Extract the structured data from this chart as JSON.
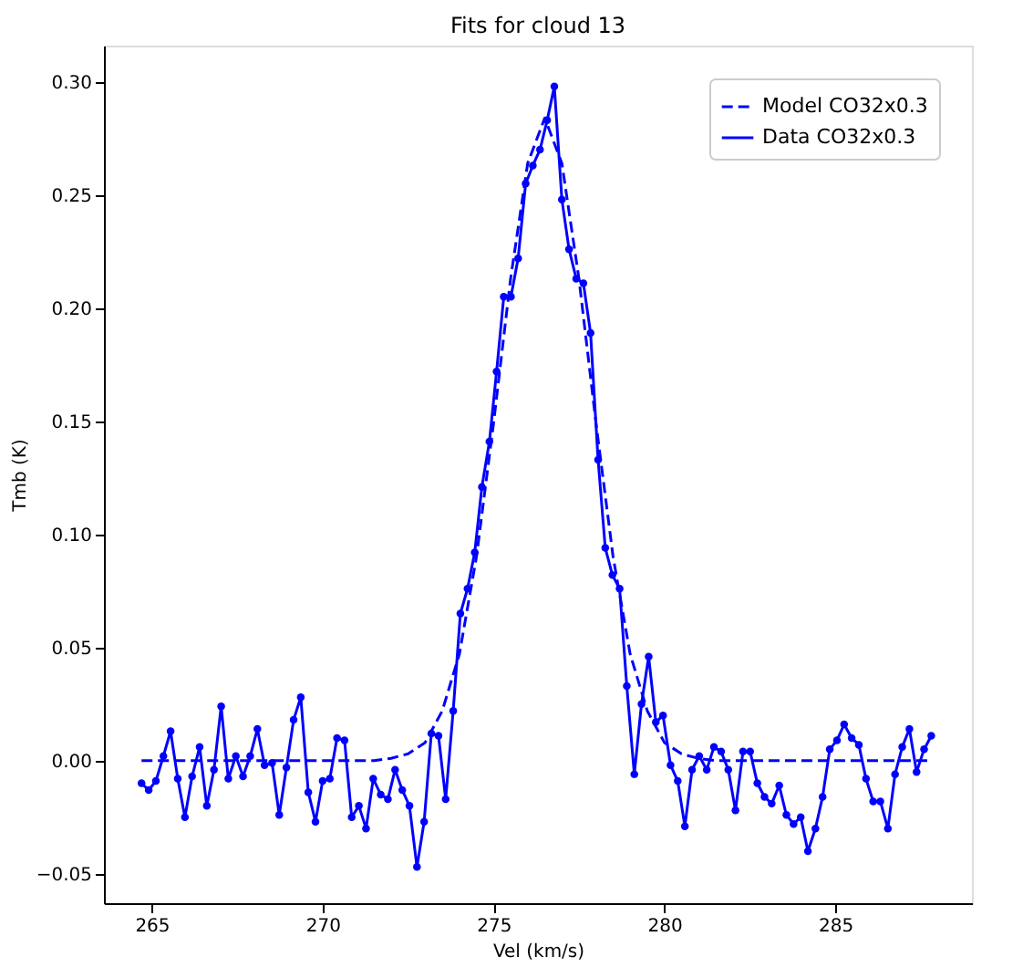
{
  "chart_data": {
    "type": "line",
    "title": "Fits for cloud 13",
    "xlabel": "Vel (km/s)",
    "ylabel": "Tmb (K)",
    "xlim": [
      263.6,
      289.0
    ],
    "xticks": [
      265,
      270,
      275,
      280,
      285
    ],
    "ylim": [
      -0.063,
      0.316
    ],
    "yticks": [
      {
        "value": -0.05,
        "label": "−0.05"
      },
      {
        "value": 0,
        "label": "0.00"
      },
      {
        "value": 0.05,
        "label": "0.05"
      },
      {
        "value": 0.1,
        "label": "0.10"
      },
      {
        "value": 0.15,
        "label": "0.15"
      },
      {
        "value": 0.2,
        "label": "0.20"
      },
      {
        "value": 0.25,
        "label": "0.25"
      },
      {
        "value": 0.3,
        "label": "0.30"
      }
    ],
    "grid": false,
    "legend": "top right",
    "series": [
      {
        "name": "Model CO32x0.3",
        "color": "#0000ff",
        "line_style": "dashed",
        "marker": "none",
        "x": [
          264.7,
          271.5,
          272.0,
          272.5,
          273.0,
          273.5,
          274.0,
          274.5,
          275.0,
          275.5,
          276.0,
          276.5,
          277.0,
          277.5,
          278.0,
          278.5,
          279.0,
          279.5,
          280.0,
          280.5,
          281.0,
          281.5,
          287.8
        ],
        "values": [
          0,
          0,
          0.001,
          0.003,
          0.008,
          0.022,
          0.047,
          0.09,
          0.149,
          0.213,
          0.264,
          0.284,
          0.264,
          0.213,
          0.149,
          0.09,
          0.047,
          0.022,
          0.008,
          0.003,
          0.001,
          0,
          0
        ]
      },
      {
        "name": "Data CO32x0.3",
        "color": "#0000ff",
        "line_style": "solid",
        "marker": "circle",
        "x": [
          264.7,
          264.91,
          265.12,
          265.34,
          265.55,
          265.76,
          265.97,
          266.18,
          266.4,
          266.61,
          266.82,
          267.03,
          267.24,
          267.46,
          267.67,
          267.88,
          268.09,
          268.3,
          268.52,
          268.73,
          268.94,
          269.15,
          269.36,
          269.58,
          269.79,
          270.0,
          270.21,
          270.42,
          270.64,
          270.85,
          271.06,
          271.27,
          271.48,
          271.7,
          271.91,
          272.12,
          272.33,
          272.54,
          272.76,
          272.97,
          273.18,
          273.39,
          273.6,
          273.82,
          274.03,
          274.24,
          274.45,
          274.66,
          274.88,
          275.09,
          275.3,
          275.51,
          275.72,
          275.94,
          276.15,
          276.36,
          276.57,
          276.78,
          277.0,
          277.21,
          277.42,
          277.63,
          277.84,
          278.06,
          278.27,
          278.48,
          278.69,
          278.9,
          279.12,
          279.33,
          279.54,
          279.75,
          279.96,
          280.18,
          280.39,
          280.6,
          280.81,
          281.02,
          281.24,
          281.45,
          281.66,
          281.87,
          282.08,
          282.3,
          282.51,
          282.72,
          282.93,
          283.14,
          283.36,
          283.57,
          283.78,
          283.99,
          284.2,
          284.42,
          284.63,
          284.84,
          285.05,
          285.26,
          285.48,
          285.69,
          285.9,
          286.11,
          286.32,
          286.54,
          286.75,
          286.96,
          287.17,
          287.38,
          287.6,
          287.81
        ],
        "values": [
          -0.01,
          -0.013,
          -0.009,
          0.002,
          0.013,
          -0.008,
          -0.025,
          -0.007,
          0.006,
          -0.02,
          -0.004,
          0.024,
          -0.008,
          0.002,
          -0.007,
          0.002,
          0.014,
          -0.002,
          -0.001,
          -0.024,
          -0.003,
          0.018,
          0.028,
          -0.014,
          -0.027,
          -0.009,
          -0.008,
          0.01,
          0.009,
          -0.025,
          -0.02,
          -0.03,
          -0.008,
          -0.015,
          -0.017,
          -0.004,
          -0.013,
          -0.02,
          -0.047,
          -0.027,
          0.012,
          0.011,
          -0.017,
          0.022,
          0.065,
          0.076,
          0.092,
          0.121,
          0.141,
          0.172,
          0.205,
          0.205,
          0.222,
          0.255,
          0.263,
          0.27,
          0.283,
          0.298,
          0.248,
          0.226,
          0.213,
          0.211,
          0.189,
          0.133,
          0.094,
          0.082,
          0.076,
          0.033,
          -0.006,
          0.025,
          0.046,
          0.017,
          0.02,
          -0.002,
          -0.009,
          -0.029,
          -0.004,
          0.002,
          -0.004,
          0.006,
          0.004,
          -0.004,
          -0.022,
          0.004,
          0.004,
          -0.01,
          -0.016,
          -0.019,
          -0.011,
          -0.024,
          -0.028,
          -0.025,
          -0.04,
          -0.03,
          -0.016,
          0.005,
          0.009,
          0.016,
          0.01,
          0.007,
          -0.008,
          -0.018,
          -0.018,
          -0.03,
          -0.006,
          0.006,
          0.014,
          -0.005,
          0.005,
          0.011
        ]
      }
    ]
  }
}
